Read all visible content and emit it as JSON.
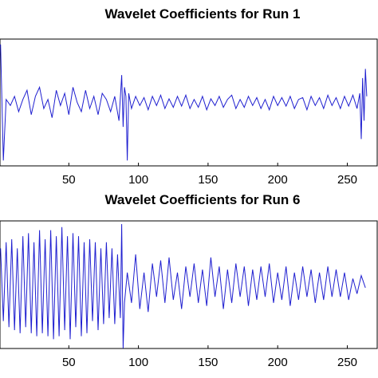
{
  "chart_data": [
    {
      "type": "line",
      "title": "Wavelet Coefficients for Run 1",
      "xlabel": "",
      "ylabel": "",
      "xlim": [
        0,
        270
      ],
      "ylim": [
        -1,
        1
      ],
      "xticks": [
        50,
        100,
        150,
        200,
        250
      ],
      "xtick_labels": [
        "50",
        "100",
        "150",
        "200",
        "250"
      ],
      "grid": false,
      "color": "#1f1fd0",
      "series": [
        {
          "x": [
            1,
            3,
            5,
            8,
            11,
            14,
            17,
            20,
            23,
            26,
            29,
            32,
            35,
            38,
            41,
            44,
            47,
            50,
            53,
            56,
            59,
            62,
            65,
            68,
            71,
            74,
            77,
            80,
            83,
            86,
            88,
            89,
            90,
            91,
            92,
            93,
            95,
            98,
            101,
            104,
            107,
            110,
            113,
            116,
            119,
            122,
            125,
            128,
            131,
            134,
            137,
            140,
            143,
            146,
            149,
            152,
            155,
            158,
            161,
            164,
            167,
            170,
            173,
            176,
            179,
            182,
            185,
            188,
            191,
            194,
            197,
            200,
            203,
            206,
            209,
            212,
            215,
            218,
            221,
            224,
            227,
            230,
            233,
            236,
            239,
            242,
            245,
            248,
            251,
            254,
            257,
            259,
            260,
            261,
            262,
            263,
            264
          ],
          "y": [
            0.95,
            -0.95,
            0.05,
            -0.05,
            0.1,
            -0.15,
            0.05,
            0.2,
            -0.2,
            0.1,
            0.25,
            -0.1,
            0.05,
            -0.25,
            0.2,
            -0.05,
            0.15,
            -0.2,
            0.25,
            0.0,
            -0.15,
            0.2,
            -0.1,
            0.1,
            -0.2,
            0.15,
            0.05,
            -0.15,
            0.1,
            -0.3,
            0.45,
            -0.4,
            0.25,
            0.1,
            -0.95,
            0.15,
            -0.1,
            0.1,
            -0.05,
            0.08,
            -0.12,
            0.1,
            -0.05,
            0.12,
            -0.1,
            0.06,
            -0.08,
            0.1,
            -0.06,
            0.12,
            -0.1,
            0.05,
            -0.08,
            0.1,
            -0.12,
            0.06,
            -0.05,
            0.1,
            -0.08,
            0.05,
            0.12,
            -0.1,
            0.05,
            -0.08,
            0.1,
            -0.05,
            0.08,
            -0.1,
            0.05,
            -0.12,
            0.1,
            -0.05,
            0.08,
            -0.06,
            0.1,
            -0.1,
            0.05,
            0.08,
            -0.12,
            0.1,
            -0.05,
            0.08,
            -0.1,
            0.12,
            -0.05,
            0.08,
            -0.1,
            0.1,
            -0.06,
            0.12,
            -0.1,
            0.15,
            -0.6,
            0.4,
            -0.3,
            0.55,
            0.1
          ]
        }
      ]
    },
    {
      "type": "line",
      "title": "Wavelet Coefficients for Run 6",
      "xlabel": "",
      "ylabel": "",
      "xlim": [
        0,
        270
      ],
      "ylim": [
        -1,
        1
      ],
      "xticks": [
        50,
        100,
        150,
        200,
        250
      ],
      "xtick_labels": [
        "50",
        "100",
        "150",
        "200",
        "250"
      ],
      "grid": false,
      "color": "#1f1fd0",
      "series": [
        {
          "x": [
            1,
            3,
            5,
            7,
            9,
            11,
            13,
            15,
            17,
            19,
            21,
            23,
            25,
            27,
            29,
            31,
            33,
            35,
            37,
            39,
            41,
            43,
            45,
            47,
            49,
            51,
            53,
            55,
            57,
            59,
            61,
            63,
            65,
            67,
            69,
            71,
            73,
            75,
            77,
            79,
            81,
            83,
            85,
            87,
            88,
            89,
            90,
            92,
            95,
            98,
            101,
            104,
            107,
            110,
            113,
            116,
            119,
            122,
            125,
            128,
            131,
            134,
            137,
            140,
            143,
            146,
            149,
            152,
            155,
            158,
            161,
            164,
            167,
            170,
            173,
            176,
            179,
            182,
            185,
            188,
            191,
            194,
            197,
            200,
            203,
            206,
            209,
            212,
            215,
            218,
            221,
            224,
            227,
            230,
            233,
            236,
            239,
            242,
            245,
            248,
            251,
            254,
            257,
            260,
            263
          ],
          "y": [
            0.6,
            -0.6,
            0.7,
            -0.7,
            0.75,
            -0.75,
            0.6,
            -0.8,
            0.8,
            -0.7,
            0.85,
            -0.8,
            0.7,
            -0.85,
            0.9,
            -0.8,
            0.75,
            -0.85,
            0.9,
            -0.9,
            0.8,
            -0.85,
            0.95,
            -0.75,
            0.8,
            -0.9,
            0.85,
            -0.7,
            0.8,
            -0.85,
            0.7,
            -0.8,
            0.75,
            -0.6,
            0.7,
            -0.75,
            0.6,
            -0.65,
            0.7,
            -0.55,
            0.6,
            -0.65,
            0.5,
            -0.55,
            1.0,
            -1.05,
            -0.3,
            0.2,
            -0.3,
            0.5,
            -0.4,
            0.2,
            -0.45,
            0.35,
            -0.2,
            0.4,
            -0.3,
            0.45,
            -0.25,
            0.2,
            -0.4,
            0.3,
            -0.2,
            0.35,
            -0.3,
            0.25,
            -0.35,
            0.45,
            -0.2,
            0.3,
            -0.4,
            0.25,
            -0.3,
            0.35,
            -0.2,
            0.3,
            -0.35,
            0.25,
            -0.25,
            0.3,
            -0.2,
            0.35,
            -0.3,
            0.2,
            -0.25,
            0.3,
            -0.35,
            0.2,
            -0.25,
            0.3,
            -0.2,
            0.25,
            -0.3,
            0.2,
            -0.25,
            0.3,
            -0.2,
            0.25,
            -0.2,
            0.2,
            -0.25,
            0.1,
            -0.15,
            0.15,
            -0.05
          ]
        }
      ]
    }
  ]
}
